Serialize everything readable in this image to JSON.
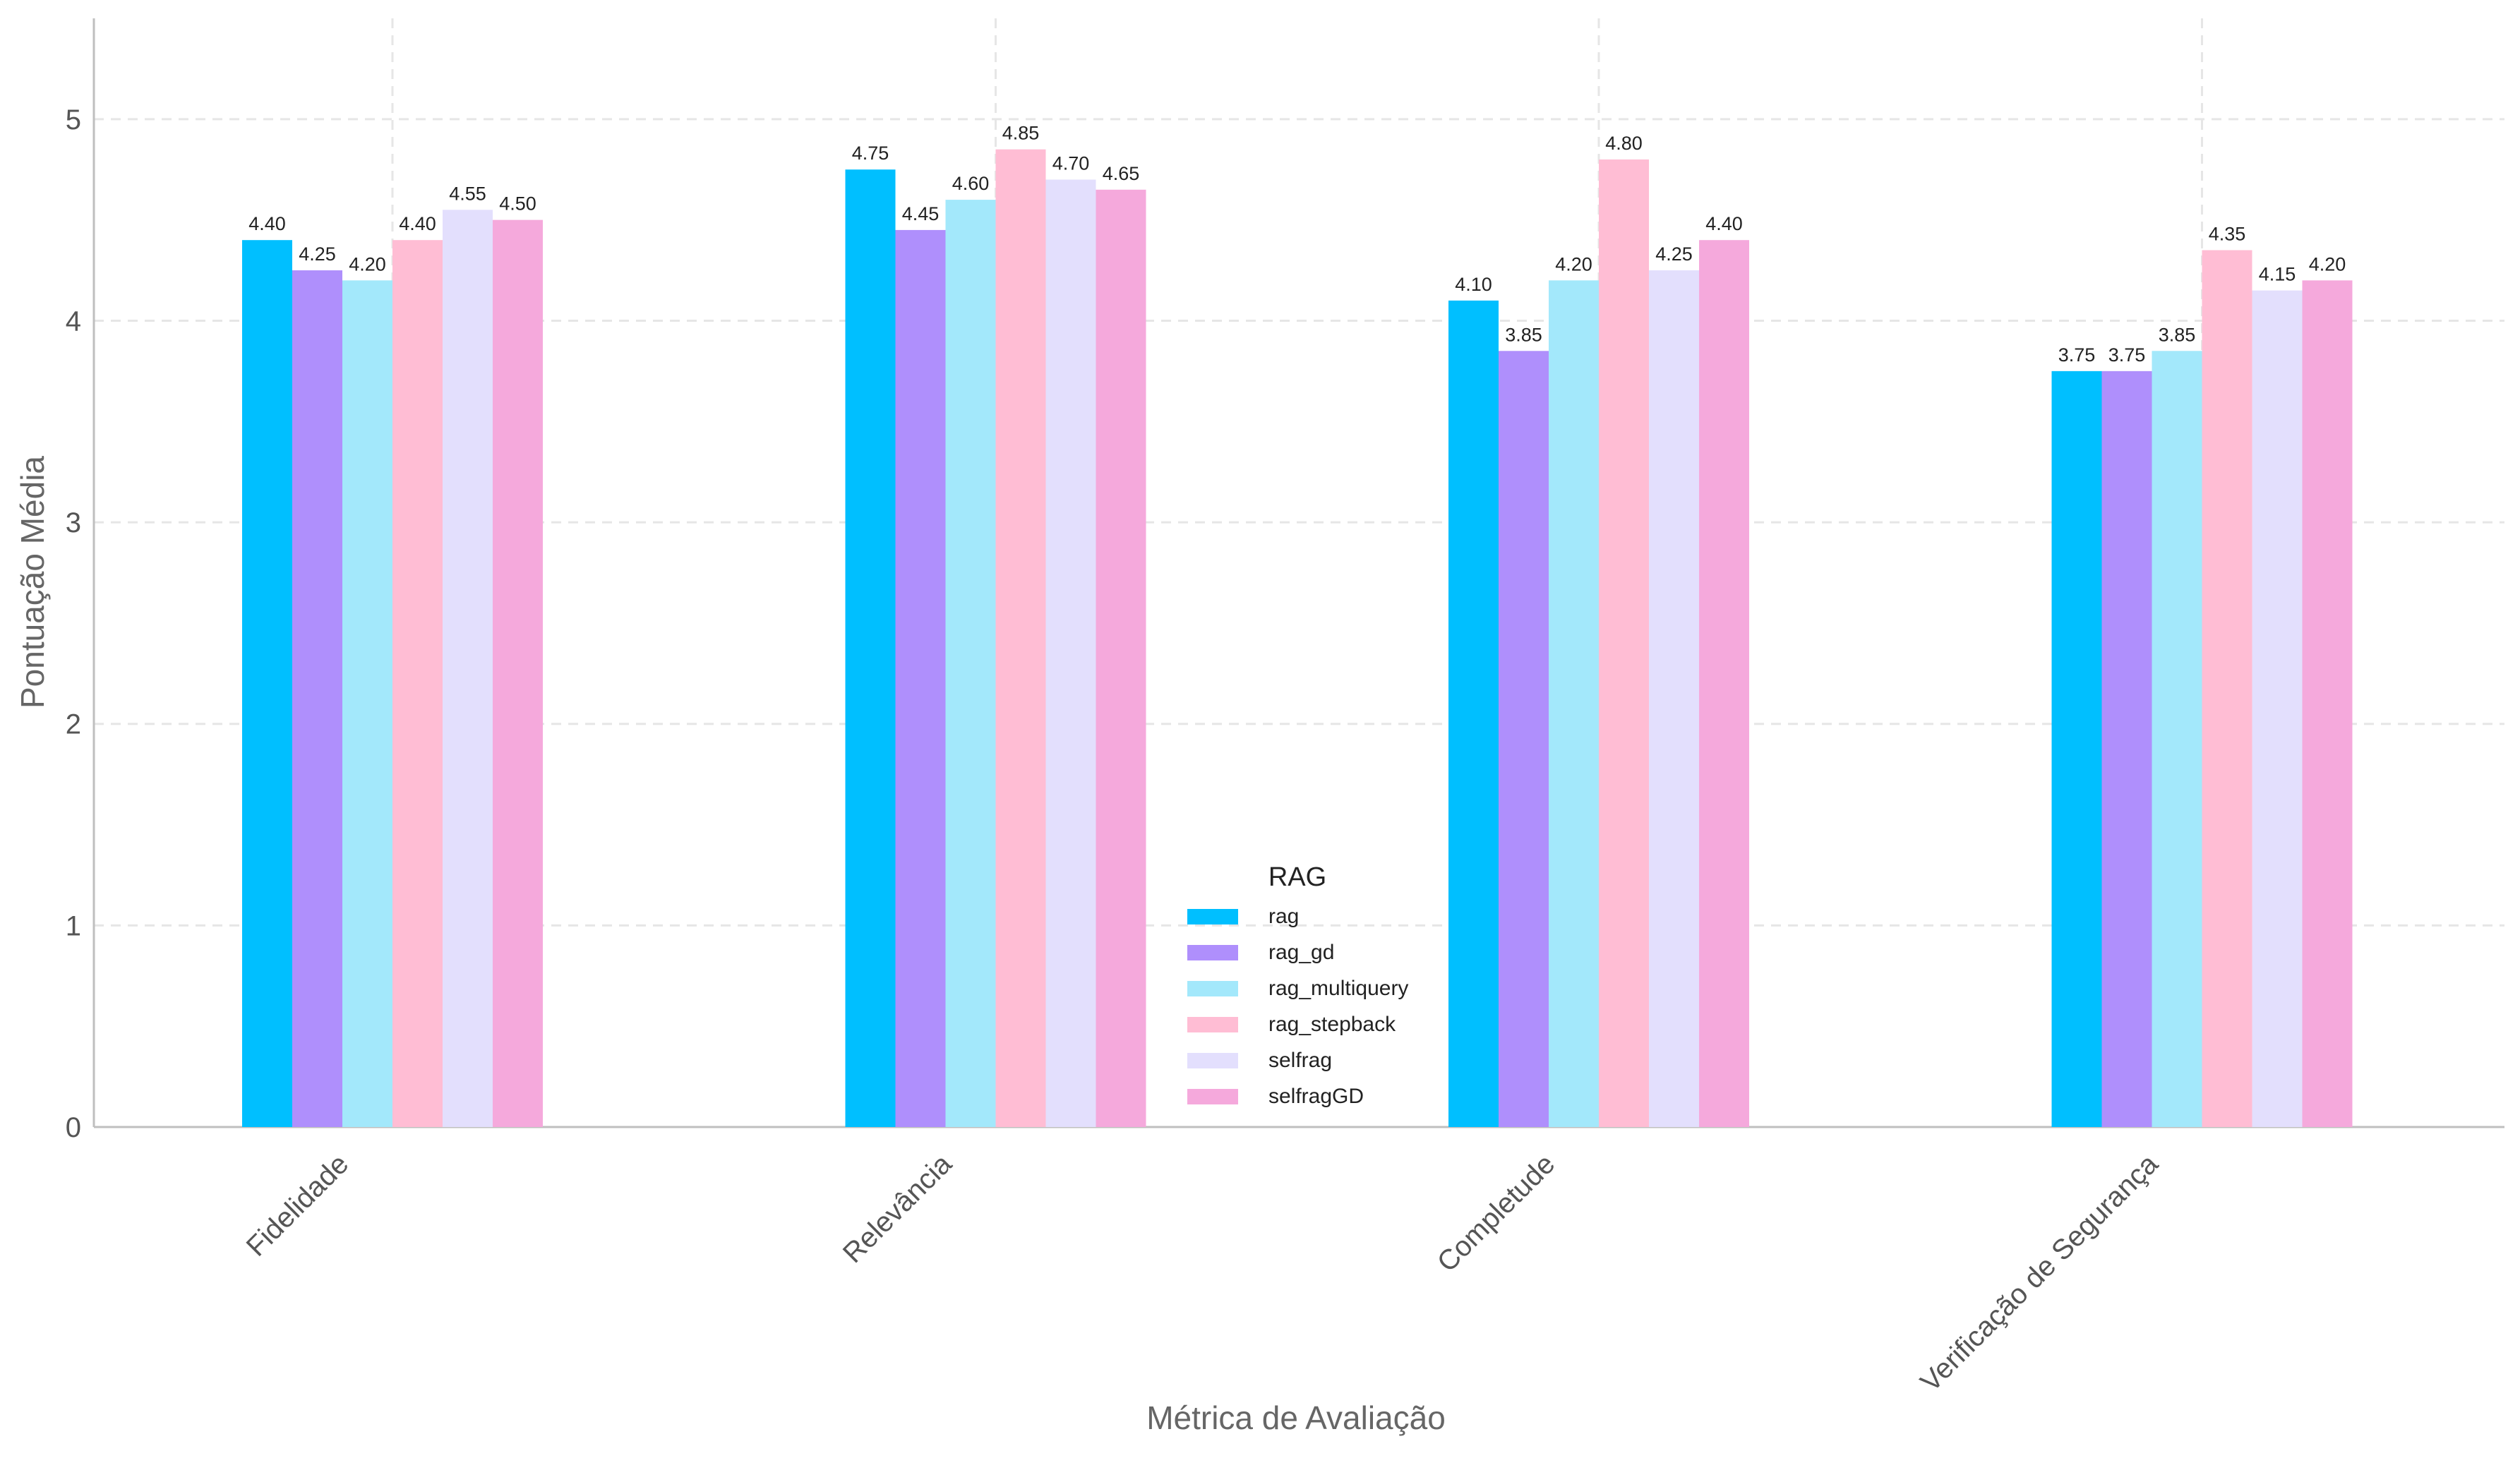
{
  "chart_data": {
    "type": "bar",
    "title": "",
    "xlabel": "Métrica de Avaliação",
    "ylabel": "Pontuação Média",
    "categories": [
      "Fidelidade",
      "Relevância",
      "Completude",
      "Verificação de Segurança"
    ],
    "ylim": [
      0,
      5.5
    ],
    "yticks": [
      0,
      1,
      2,
      3,
      4,
      5
    ],
    "grid": true,
    "legend": {
      "title": "RAG",
      "position": "lower-center"
    },
    "series": [
      {
        "name": "rag",
        "color": "#00BFFF",
        "values": [
          4.4,
          4.75,
          4.1,
          3.75
        ],
        "labels": [
          "4.40",
          "4.75",
          "4.10",
          "3.75"
        ]
      },
      {
        "name": "rag_gd",
        "color": "#AF8FFC",
        "values": [
          4.25,
          4.45,
          3.85,
          3.75
        ],
        "labels": [
          "4.25",
          "4.45",
          "3.85",
          "3.75"
        ]
      },
      {
        "name": "rag_multiquery",
        "color": "#A3E8FB",
        "values": [
          4.2,
          4.6,
          4.2,
          3.85
        ],
        "labels": [
          "4.20",
          "4.60",
          "4.20",
          "3.85"
        ]
      },
      {
        "name": "rag_stepback",
        "color": "#FFBDD4",
        "values": [
          4.4,
          4.85,
          4.8,
          4.35
        ],
        "labels": [
          "4.40",
          "4.85",
          "4.80",
          "4.35"
        ]
      },
      {
        "name": "selfrag",
        "color": "#E3DFFD",
        "values": [
          4.55,
          4.7,
          4.25,
          4.15
        ],
        "labels": [
          "4.55",
          "4.70",
          "4.25",
          "4.15"
        ]
      },
      {
        "name": "selfragGD",
        "color": "#F5A9DC",
        "values": [
          4.5,
          4.65,
          4.4,
          4.2
        ],
        "labels": [
          "4.50",
          "4.65",
          "4.40",
          "4.20"
        ]
      }
    ]
  }
}
